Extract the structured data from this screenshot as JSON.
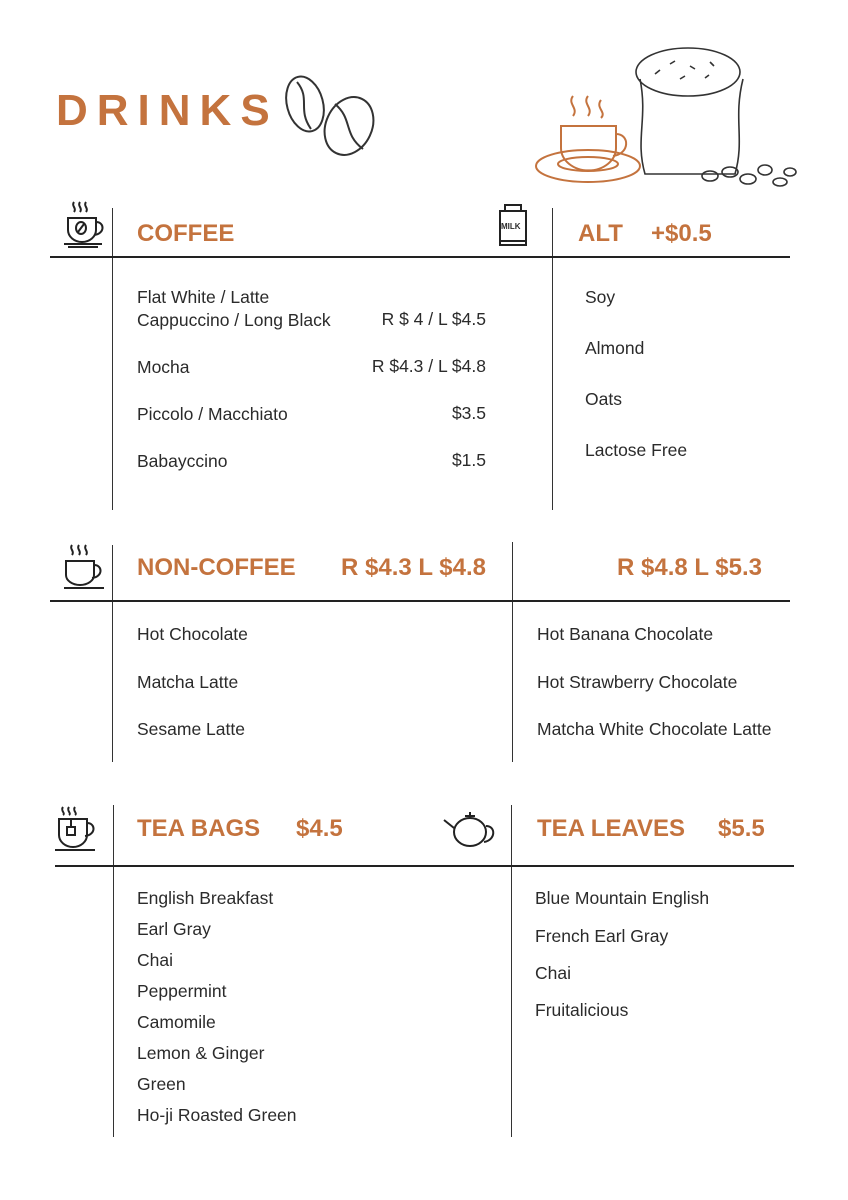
{
  "title": "DRINKS",
  "colors": {
    "accent": "#c4733e",
    "text": "#2b2b2b"
  },
  "icons": [
    "coffee-beans-icon",
    "coffee-cup-illustration",
    "coffee-sack-illustration",
    "coffee-cup-icon",
    "milk-carton-icon",
    "hot-cup-icon",
    "tea-cup-icon",
    "teapot-icon"
  ],
  "milk_label": "MILK",
  "coffee": {
    "heading": "COFFEE",
    "items": [
      {
        "name": "Flat White / Latte",
        "price": ""
      },
      {
        "name": "Cappuccino / Long Black",
        "price": "R $ 4 / L $4.5"
      },
      {
        "name": "Mocha",
        "price": "R $4.3 / L $4.8"
      },
      {
        "name": "Piccolo / Macchiato",
        "price": "$3.5"
      },
      {
        "name": "Babayccino",
        "price": "$1.5"
      }
    ]
  },
  "alt": {
    "heading": "ALT",
    "price": "+$0.5",
    "items": [
      "Soy",
      "Almond",
      "Oats",
      "Lactose Free"
    ]
  },
  "non_coffee": {
    "heading": "NON-COFFEE",
    "price_left": "R $4.3 L $4.8",
    "price_right": "R $4.8 L $5.3",
    "left_items": [
      "Hot Chocolate",
      "Matcha Latte",
      "Sesame Latte"
    ],
    "right_items": [
      "Hot Banana Chocolate",
      "Hot Strawberry Chocolate",
      "Matcha White Chocolate Latte"
    ]
  },
  "tea_bags": {
    "heading": "TEA BAGS",
    "price": "$4.5",
    "items": [
      "English Breakfast",
      "Earl Gray",
      "Chai",
      "Peppermint",
      "Camomile",
      "Lemon & Ginger",
      "Green",
      "Ho-ji Roasted Green"
    ]
  },
  "tea_leaves": {
    "heading": "TEA LEAVES",
    "price": "$5.5",
    "items": [
      "Blue Mountain English",
      "French Earl Gray",
      "Chai",
      "Fruitalicious"
    ]
  }
}
